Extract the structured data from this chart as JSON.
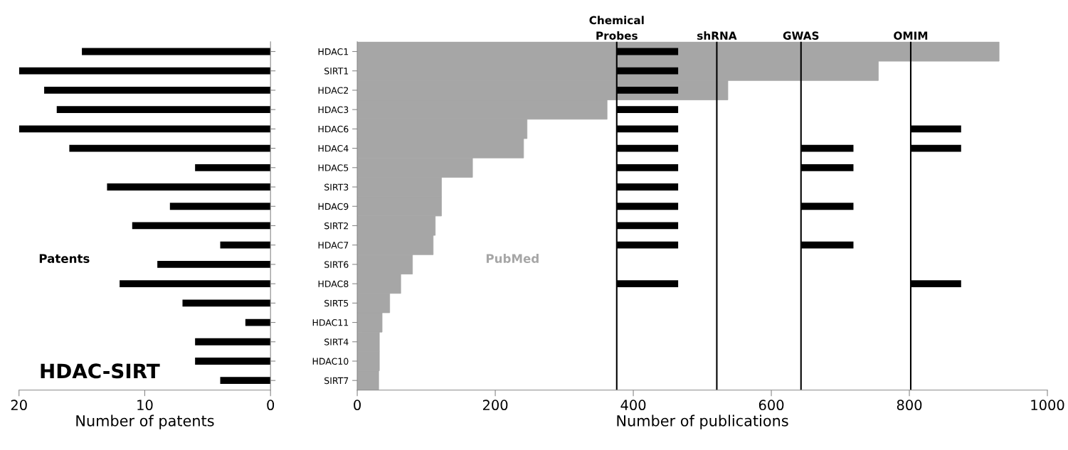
{
  "chart_data": [
    {
      "type": "bar",
      "orientation": "horizontal",
      "tick_labels": "x",
      "categories": [
        null,
        null,
        null,
        null,
        null,
        null,
        null,
        null,
        null,
        null,
        null,
        null,
        null,
        null,
        null,
        null,
        null,
        null
      ],
      "xlim": [
        20,
        0
      ],
      "xticks": [
        20,
        10,
        0
      ],
      "xlabel": "Number of patents",
      "annotations": [
        "HDAC-SIRT"
      ],
      "series": [
        {
          "name": "Patents",
          "color": "#000000",
          "values": [
            15,
            20,
            18,
            17,
            20,
            16,
            6,
            13,
            8,
            11,
            4,
            9,
            12,
            7,
            2,
            6,
            6,
            4
          ]
        }
      ]
    },
    {
      "type": "bar",
      "orientation": "horizontal",
      "categories": [
        "HDAC1",
        "SIRT1",
        "HDAC2",
        "HDAC3",
        "HDAC6",
        "HDAC4",
        "HDAC5",
        "SIRT3",
        "HDAC9",
        "SIRT2",
        "HDAC7",
        "SIRT6",
        "HDAC8",
        "SIRT5",
        "HDAC11",
        "SIRT4",
        "HDAC10",
        "SIRT7"
      ],
      "xlim": [
        0,
        1000
      ],
      "xticks": [
        0,
        200,
        400,
        600,
        800,
        1000
      ],
      "xlabel": "Number of publications",
      "series": [
        {
          "name": "PubMed",
          "color": "#a6a6a6",
          "values": [
            930,
            755,
            537,
            362,
            246,
            241,
            167,
            122,
            122,
            113,
            110,
            80,
            63,
            47,
            36,
            32,
            32,
            31
          ]
        },
        {
          "color": "#000000",
          "base": [
            376,
            376,
            376,
            376,
            376,
            376,
            376,
            376,
            376,
            376,
            376,
            null,
            376,
            null,
            null,
            null,
            null,
            null
          ],
          "values": [
            89,
            89,
            89,
            89,
            89,
            89,
            89,
            89,
            89,
            89,
            89,
            null,
            89,
            null,
            null,
            null,
            null,
            null
          ]
        },
        {
          "color": "#000000",
          "base": [
            null,
            null,
            null,
            null,
            null,
            643,
            643,
            null,
            643,
            null,
            643,
            null,
            null,
            null,
            null,
            null,
            null,
            null
          ],
          "values": [
            null,
            null,
            null,
            null,
            null,
            76,
            76,
            null,
            76,
            null,
            76,
            null,
            null,
            null,
            null,
            null,
            null,
            null
          ]
        },
        {
          "color": "#000000",
          "base": [
            null,
            null,
            null,
            null,
            802,
            802,
            null,
            null,
            null,
            null,
            null,
            null,
            802,
            null,
            null,
            null,
            null,
            null
          ],
          "values": [
            null,
            null,
            null,
            null,
            73,
            73,
            null,
            null,
            null,
            null,
            null,
            null,
            73,
            null,
            null,
            null,
            null,
            null
          ]
        }
      ],
      "ref_lines": [
        {
          "axis": "x",
          "value": 376,
          "label": "Chemical\nProbes",
          "color": "#000000"
        },
        {
          "axis": "x",
          "value": 521,
          "label": "shRNA",
          "color": "#000000"
        },
        {
          "axis": "x",
          "value": 643,
          "label": "GWAS",
          "color": "#000000"
        },
        {
          "axis": "x",
          "value": 802,
          "label": "OMIM",
          "color": "#000000"
        }
      ]
    }
  ]
}
